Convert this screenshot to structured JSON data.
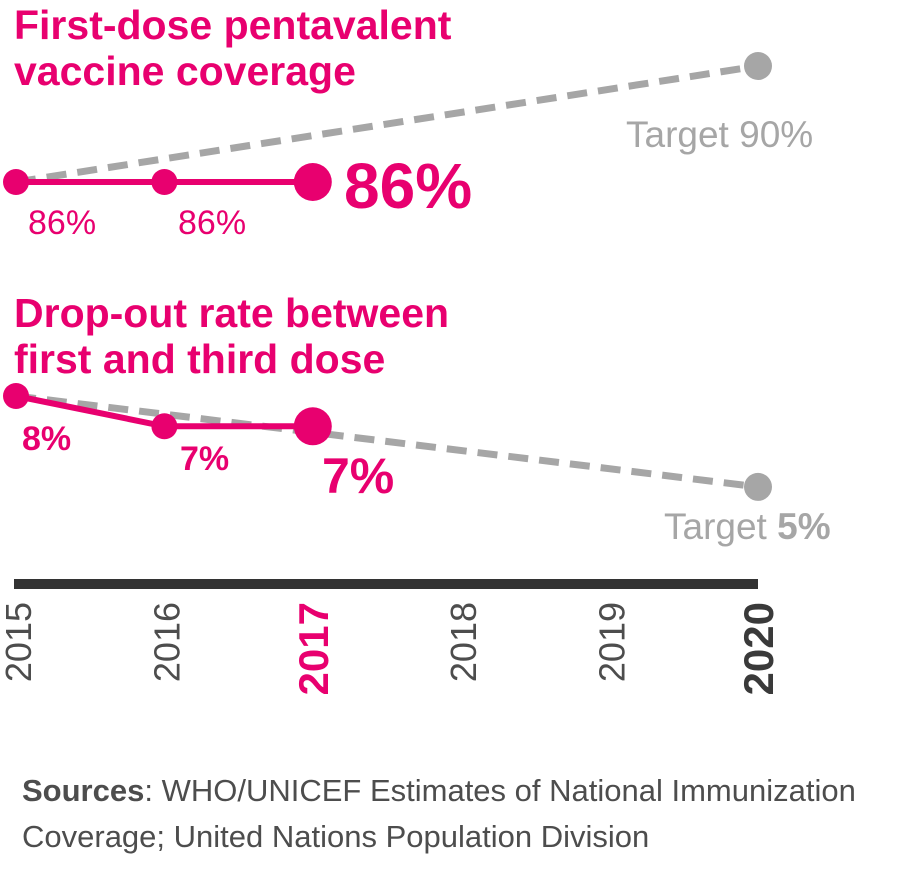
{
  "colors": {
    "accent": "#e8006f",
    "target": "#a6a6a6",
    "axis": "#333333",
    "text": "#4d4d4d"
  },
  "chart_data": [
    {
      "type": "line",
      "title": "First-dose pentavalent vaccine coverage",
      "x": [
        "2015",
        "2016",
        "2017",
        "2018",
        "2019",
        "2020"
      ],
      "series": [
        {
          "values": [
            86,
            86,
            86
          ],
          "x": [
            "2015",
            "2016",
            "2017"
          ],
          "labels": [
            "86%",
            "86%",
            "86%"
          ]
        }
      ],
      "target": {
        "label": "Target",
        "value_label": "90%",
        "line_from": [
          "2015",
          86
        ],
        "line_to": [
          "2020",
          90
        ]
      }
    },
    {
      "type": "line",
      "title": "Drop-out rate between first and third dose",
      "x": [
        "2015",
        "2016",
        "2017",
        "2018",
        "2019",
        "2020"
      ],
      "series": [
        {
          "values": [
            8,
            7,
            7
          ],
          "x": [
            "2015",
            "2016",
            "2017"
          ],
          "labels": [
            "8%",
            "7%",
            "7%"
          ]
        }
      ],
      "target": {
        "label": "Target",
        "value_label": "5%",
        "line_from": [
          "2015",
          8
        ],
        "line_to": [
          "2020",
          5
        ]
      }
    }
  ],
  "axis": {
    "years": [
      "2015",
      "2016",
      "2017",
      "2018",
      "2019",
      "2020"
    ],
    "highlight_current": "2017",
    "highlight_target": "2020"
  },
  "sources": {
    "label": "Sources",
    "separator": ": ",
    "text": "WHO/UNICEF Estimates of National Immunization Coverage; United Nations Population Division"
  }
}
